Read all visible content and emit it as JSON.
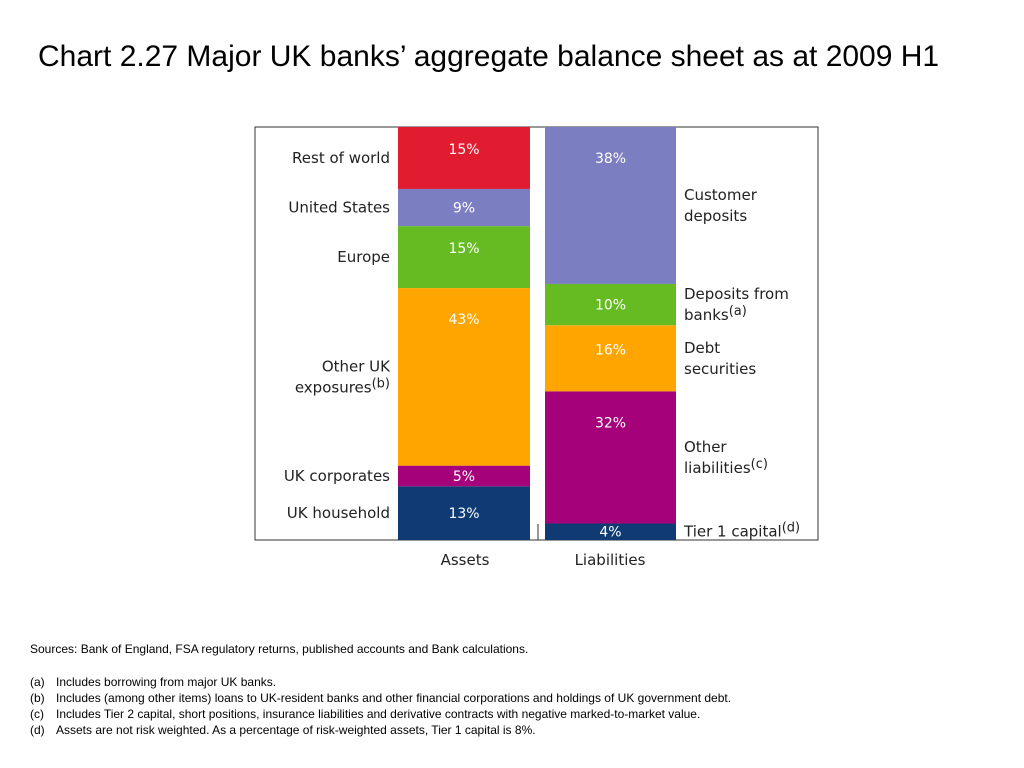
{
  "title": "Chart 2.27  Major UK banks’ aggregate balance sheet as at 2009 H1",
  "chart_data": {
    "type": "bar",
    "stacked": true,
    "categories": [
      "Assets",
      "Liabilities"
    ],
    "ylim": [
      0,
      100
    ],
    "unit": "%",
    "grid": false,
    "legend": "none",
    "columns": [
      {
        "name": "Assets",
        "segments": [
          {
            "label": "UK household",
            "note": "",
            "value": 13,
            "display": "13%",
            "color": "#0f3a73"
          },
          {
            "label": "UK corporates",
            "note": "",
            "value": 5,
            "display": "5%",
            "color": "#a5017a"
          },
          {
            "label": "Other UK exposures",
            "note": "(b)",
            "value": 43,
            "display": "43%",
            "color": "#ffa500"
          },
          {
            "label": "Europe",
            "note": "",
            "value": 15,
            "display": "15%",
            "color": "#66bb22"
          },
          {
            "label": "United States",
            "note": "",
            "value": 9,
            "display": "9%",
            "color": "#7b7ec0"
          },
          {
            "label": "Rest of world",
            "note": "",
            "value": 15,
            "display": "15%",
            "color": "#e11b30"
          }
        ]
      },
      {
        "name": "Liabilities",
        "segments": [
          {
            "label": "Tier 1 capital",
            "note": "(d)",
            "value": 4,
            "display": "4%",
            "color": "#0f3a73"
          },
          {
            "label": "Other liabilities",
            "note": "(c)",
            "value": 32,
            "display": "32%",
            "color": "#a5017a"
          },
          {
            "label": "Debt securities",
            "note": "",
            "value": 16,
            "display": "16%",
            "color": "#ffa500"
          },
          {
            "label": "Deposits from banks",
            "note": "(a)",
            "value": 10,
            "display": "10%",
            "color": "#66bb22"
          },
          {
            "label": "Customer deposits",
            "note": "",
            "value": 38,
            "display": "38%",
            "color": "#7b7ec0"
          }
        ]
      }
    ]
  },
  "sources": "Sources:  Bank of England, FSA regulatory returns, published accounts and Bank calculations.",
  "notes": [
    {
      "key": "(a)",
      "text": "Includes borrowing from major UK banks."
    },
    {
      "key": "(b)",
      "text": "Includes (among other items) loans to UK-resident banks and other financial corporations and holdings of UK government debt."
    },
    {
      "key": "(c)",
      "text": "Includes Tier 2 capital, short positions, insurance liabilities and derivative contracts with negative marked-to-market value."
    },
    {
      "key": "(d)",
      "text": "Assets are not risk weighted.  As a percentage of risk-weighted assets, Tier 1 capital is 8%."
    }
  ]
}
